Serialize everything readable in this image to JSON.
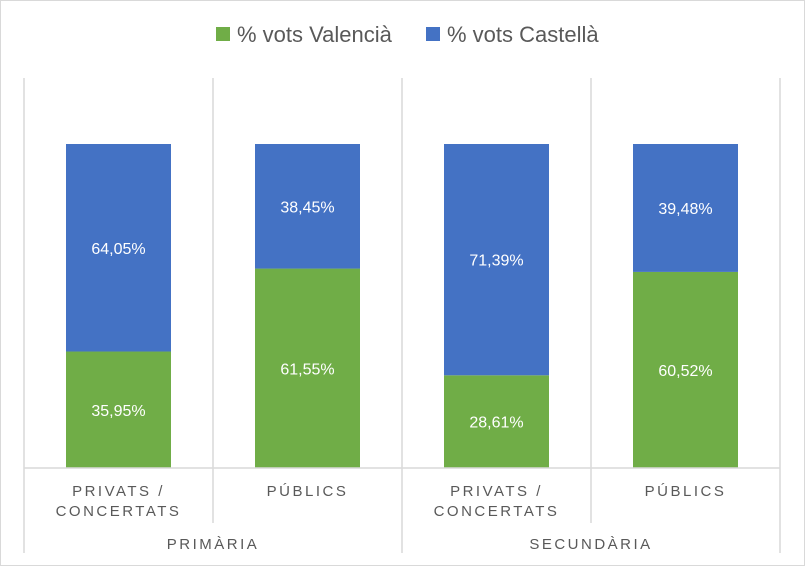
{
  "chart_data": {
    "type": "bar",
    "stacked": true,
    "percent_stacked": true,
    "groups": [
      {
        "label": "PRIMÀRIA",
        "categories": [
          "PRIVATS / CONCERTATS",
          "PÚBLICS"
        ]
      },
      {
        "label": "SECUNDÀRIA",
        "categories": [
          "PRIVATS / CONCERTATS",
          "PÚBLICS"
        ]
      }
    ],
    "categories": [
      {
        "lines": [
          "PRIVATS /",
          "CONCERTATS"
        ],
        "group": "PRIMÀRIA"
      },
      {
        "lines": [
          "PÚBLICS"
        ],
        "group": "PRIMÀRIA"
      },
      {
        "lines": [
          "PRIVATS /",
          "CONCERTATS"
        ],
        "group": "SECUNDÀRIA"
      },
      {
        "lines": [
          "PÚBLICS"
        ],
        "group": "SECUNDÀRIA"
      }
    ],
    "series": [
      {
        "name": "% vots Valencià",
        "color": "#70ad47",
        "values": [
          35.95,
          61.55,
          28.61,
          60.52
        ],
        "labels": [
          "35,95%",
          "61,55%",
          "28,61%",
          "60,52%"
        ]
      },
      {
        "name": "% vots Castellà",
        "color": "#4472c4",
        "values": [
          64.05,
          38.45,
          71.39,
          39.48
        ],
        "labels": [
          "64,05%",
          "38,45%",
          "71,39%",
          "39,48%"
        ]
      }
    ],
    "ylim": [
      0,
      100
    ],
    "title": "",
    "xlabel": "",
    "ylabel": "",
    "legend_position": "top",
    "grid": false
  }
}
